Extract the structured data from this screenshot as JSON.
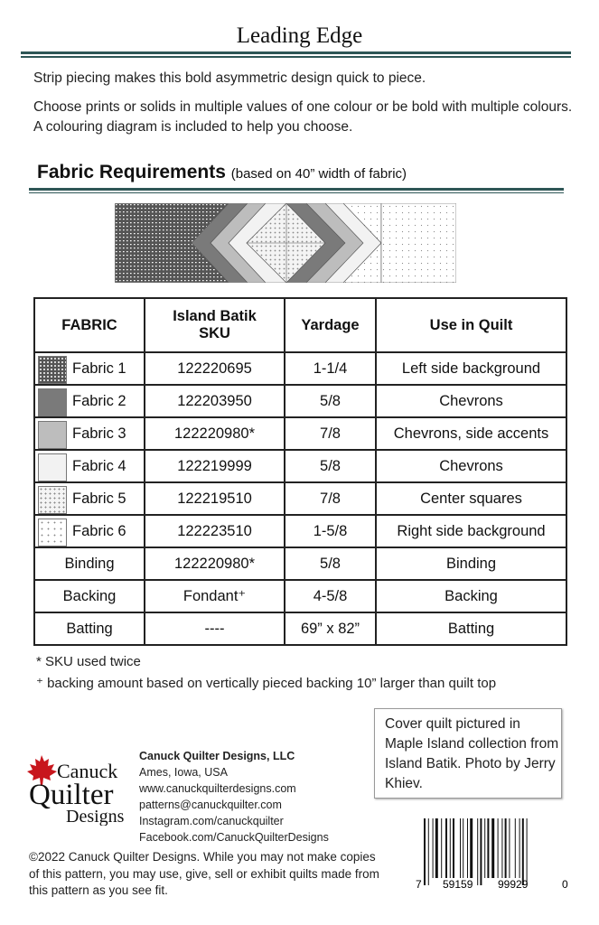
{
  "title": "Leading Edge",
  "intro": [
    "Strip piecing makes this bold asymmetric design quick to piece.",
    "Choose prints or solids in multiple values of one colour or be bold with multiple colours.  A colouring diagram is included to help you choose."
  ],
  "fabric_requirements": {
    "heading": "Fabric Requirements",
    "subheading": "(based on 40” width of fabric)"
  },
  "colors": {
    "rule": "#2e5656",
    "fabric2": "#7a7a7a",
    "fabric3": "#bdbdbd",
    "fabric4": "#f2f2f2"
  },
  "table": {
    "headers": [
      "FABRIC",
      "Island Batik SKU",
      "Yardage",
      "Use in Quilt"
    ],
    "rows": [
      {
        "fabric": "Fabric 1",
        "swatch": "fabric1",
        "sku": "122220695",
        "yardage": "1-1/4",
        "use": "Left side background"
      },
      {
        "fabric": "Fabric 2",
        "swatch": "fabric2",
        "sku": "122203950",
        "yardage": "5/8",
        "use": "Chevrons"
      },
      {
        "fabric": "Fabric 3",
        "swatch": "fabric3",
        "sku": "122220980*",
        "yardage": "7/8",
        "use": "Chevrons, side accents"
      },
      {
        "fabric": "Fabric 4",
        "swatch": "fabric4",
        "sku": "122219999",
        "yardage": "5/8",
        "use": "Chevrons"
      },
      {
        "fabric": "Fabric 5",
        "swatch": "fabric5",
        "sku": "122219510",
        "yardage": "7/8",
        "use": "Center squares"
      },
      {
        "fabric": "Fabric 6",
        "swatch": "fabric6",
        "sku": "122223510",
        "yardage": "1-5/8",
        "use": "Right side background"
      },
      {
        "fabric": "Binding",
        "sku": "122220980*",
        "yardage": "5/8",
        "use": "Binding"
      },
      {
        "fabric": "Backing",
        "sku": "Fondant⁺",
        "yardage": "4-5/8",
        "use": "Backing"
      },
      {
        "fabric": "Batting",
        "sku": "----",
        "yardage": "69” x 82”",
        "use": "Batting"
      }
    ]
  },
  "notes": [
    "* SKU used twice",
    "⁺ backing amount based on vertically pieced backing 10” larger than quilt top"
  ],
  "cover_note": "Cover quilt pictured in Maple Island collection from Island Batik.  Photo by Jerry Khiev.",
  "logo": {
    "text": [
      "Canuck",
      "Quilter",
      "Designs"
    ],
    "icon": "maple-leaf-icon",
    "leaf_color": "#c8161d"
  },
  "contact": [
    "Canuck Quilter Designs, LLC",
    "Ames, Iowa, USA",
    "www.canuckquilterdesigns.com",
    "patterns@canuckquilter.com",
    "Instagram.com/canuckquilter",
    "Facebook.com/CanuckQuilterDesigns"
  ],
  "copyright": "©2022 Canuck Quilter Designs.  While  you may not make copies of this pattern, you may use, give, sell or exhibit  quilts made from this pattern as  you see fit.",
  "barcode": {
    "digits": [
      "7",
      "59159",
      "99929",
      "0"
    ]
  }
}
